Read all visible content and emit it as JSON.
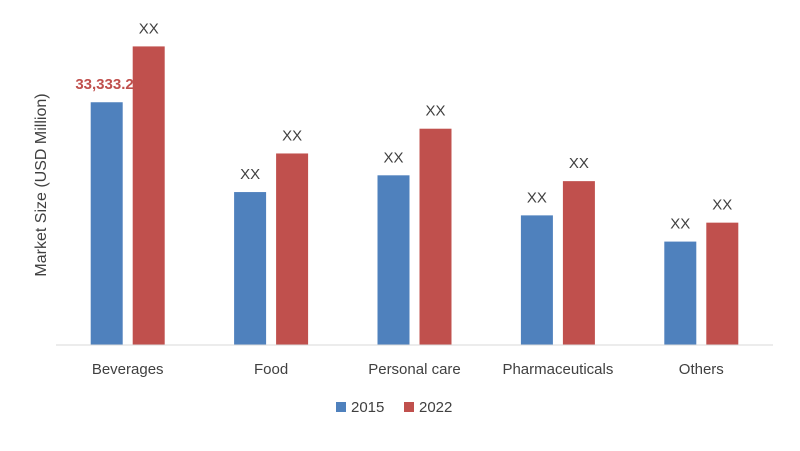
{
  "chart_data": {
    "type": "bar",
    "ylabel": "Market Size (USD Million)",
    "xlabel": "",
    "categories": [
      "Beverages",
      "Food",
      "Personal care",
      "Pharmaceuticals",
      "Others"
    ],
    "series": [
      {
        "name": "2015",
        "color": "#4f81bd",
        "values": [
          33333.2,
          21000,
          23300,
          17800,
          14200
        ],
        "labels": [
          "33,333.20",
          "XX",
          "XX",
          "XX",
          "XX"
        ]
      },
      {
        "name": "2022",
        "color": "#c0504d",
        "values": [
          41000,
          26300,
          29700,
          22500,
          16800
        ],
        "labels": [
          "XX",
          "XX",
          "XX",
          "XX",
          "XX"
        ]
      }
    ],
    "highlight_label_color": "#c0504d",
    "ylim": [
      0,
      46000
    ],
    "grid": false,
    "legend_position": "bottom"
  }
}
